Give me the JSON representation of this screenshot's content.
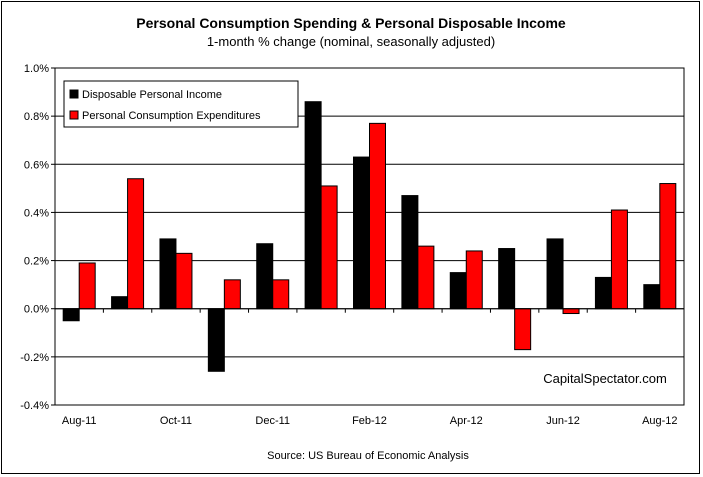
{
  "chart_data": {
    "type": "bar",
    "title": "Personal Consumption Spending & Personal Disposable Income",
    "subtitle": "1-month % change (nominal, seasonally adjusted)",
    "xlabel": "",
    "ylabel": "",
    "ylim": [
      -0.4,
      1.0
    ],
    "y_ticks": [
      "-0.4%",
      "-0.2%",
      "0.0%",
      "0.2%",
      "0.4%",
      "0.6%",
      "0.8%",
      "1.0%"
    ],
    "categories": [
      "Aug-11",
      "Sep-11",
      "Oct-11",
      "Nov-11",
      "Dec-11",
      "Jan-12",
      "Feb-12",
      "Mar-12",
      "Apr-12",
      "May-12",
      "Jun-12",
      "Jul-12",
      "Aug-12"
    ],
    "x_tick_labels": [
      "Aug-11",
      "",
      "Oct-11",
      "",
      "Dec-11",
      "",
      "Feb-12",
      "",
      "Apr-12",
      "",
      "Jun-12",
      "",
      "Aug-12"
    ],
    "series": [
      {
        "name": "Disposable Personal Income",
        "color": "#000000",
        "values": [
          -0.05,
          0.05,
          0.29,
          -0.26,
          0.27,
          0.86,
          0.63,
          0.47,
          0.15,
          0.25,
          0.29,
          0.13,
          0.1
        ]
      },
      {
        "name": "Personal Consumption Expenditures",
        "color": "#ff0000",
        "values": [
          0.19,
          0.54,
          0.23,
          0.12,
          0.12,
          0.51,
          0.77,
          0.26,
          0.24,
          -0.17,
          -0.02,
          0.41,
          0.52
        ]
      }
    ],
    "grid": true,
    "legend_position": "top-left",
    "annotation": "CapitalSpectator.com",
    "source": "Source: US Bureau of Economic Analysis"
  }
}
